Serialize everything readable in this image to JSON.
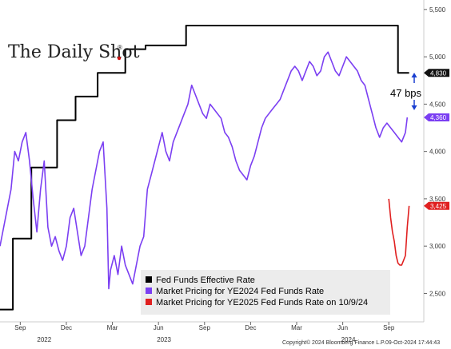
{
  "brand": {
    "logo_text": "The Daily Shot",
    "logo_mark": "®"
  },
  "chart_data": {
    "type": "line",
    "ylim": [
      2200,
      5600
    ],
    "y_ticks": [
      2500,
      3000,
      3500,
      4000,
      4500,
      5000,
      5500
    ],
    "y_tick_labels": [
      "2,500",
      "3,000",
      "3,500",
      "4,000",
      "4,500",
      "5,000",
      "5,500"
    ],
    "x_ticks": [
      {
        "x": 2022.67,
        "label": "Sep"
      },
      {
        "x": 2022.92,
        "label": "Dec"
      },
      {
        "x": 2023.17,
        "label": "Mar"
      },
      {
        "x": 2023.42,
        "label": "Jun"
      },
      {
        "x": 2023.67,
        "label": "Sep"
      },
      {
        "x": 2023.92,
        "label": "Dec"
      },
      {
        "x": 2024.17,
        "label": "Mar"
      },
      {
        "x": 2024.42,
        "label": "Jun"
      },
      {
        "x": 2024.67,
        "label": "Sep"
      }
    ],
    "year_labels": [
      {
        "x": 2022.8,
        "label": "2022"
      },
      {
        "x": 2023.45,
        "label": "2023"
      },
      {
        "x": 2024.45,
        "label": "2024"
      }
    ],
    "series": [
      {
        "name": "Fed Funds Effective Rate",
        "color": "#000000",
        "step": true,
        "x": [
          2022.56,
          2022.63,
          2022.73,
          2022.87,
          2022.97,
          2023.09,
          2023.24,
          2023.35,
          2023.57,
          2024.72,
          2024.78
        ],
        "y": [
          2330,
          3080,
          3830,
          4330,
          4580,
          4830,
          5080,
          5120,
          5330,
          4830,
          4830
        ]
      },
      {
        "name": "Market Pricing for YE2024 Fed Funds Rate",
        "color": "#7b3ff2",
        "step": false,
        "x": [
          2022.56,
          2022.58,
          2022.6,
          2022.62,
          2022.64,
          2022.66,
          2022.68,
          2022.7,
          2022.72,
          2022.74,
          2022.76,
          2022.78,
          2022.8,
          2022.82,
          2022.84,
          2022.86,
          2022.88,
          2022.9,
          2022.92,
          2022.94,
          2022.96,
          2022.98,
          2023.0,
          2023.02,
          2023.04,
          2023.06,
          2023.08,
          2023.1,
          2023.12,
          2023.14,
          2023.15,
          2023.16,
          2023.18,
          2023.2,
          2023.22,
          2023.24,
          2023.26,
          2023.28,
          2023.3,
          2023.32,
          2023.34,
          2023.36,
          2023.38,
          2023.4,
          2023.42,
          2023.44,
          2023.46,
          2023.48,
          2023.5,
          2023.52,
          2023.54,
          2023.56,
          2023.58,
          2023.6,
          2023.62,
          2023.64,
          2023.66,
          2023.68,
          2023.7,
          2023.72,
          2023.74,
          2023.76,
          2023.78,
          2023.8,
          2023.82,
          2023.84,
          2023.86,
          2023.88,
          2023.9,
          2023.92,
          2023.94,
          2023.96,
          2023.98,
          2024.0,
          2024.02,
          2024.04,
          2024.06,
          2024.08,
          2024.1,
          2024.12,
          2024.14,
          2024.16,
          2024.18,
          2024.2,
          2024.22,
          2024.24,
          2024.26,
          2024.28,
          2024.3,
          2024.32,
          2024.34,
          2024.36,
          2024.38,
          2024.4,
          2024.42,
          2024.44,
          2024.46,
          2024.48,
          2024.5,
          2024.52,
          2024.54,
          2024.56,
          2024.58,
          2024.6,
          2024.62,
          2024.64,
          2024.66,
          2024.68,
          2024.7,
          2024.72,
          2024.74,
          2024.76,
          2024.77
        ],
        "y": [
          3000,
          3200,
          3400,
          3600,
          4000,
          3900,
          4100,
          4200,
          3900,
          3500,
          3150,
          3600,
          3900,
          3200,
          3000,
          3100,
          2950,
          2850,
          3000,
          3300,
          3400,
          3150,
          2900,
          3000,
          3300,
          3600,
          3800,
          4000,
          4100,
          3400,
          2550,
          2750,
          2900,
          2700,
          3000,
          2800,
          2700,
          2600,
          2800,
          3000,
          3100,
          3600,
          3750,
          3900,
          4050,
          4200,
          4000,
          3900,
          4100,
          4200,
          4300,
          4400,
          4500,
          4700,
          4600,
          4500,
          4400,
          4350,
          4500,
          4450,
          4400,
          4350,
          4200,
          4150,
          4050,
          3900,
          3800,
          3750,
          3700,
          3850,
          3950,
          4100,
          4250,
          4350,
          4400,
          4450,
          4500,
          4550,
          4650,
          4750,
          4850,
          4900,
          4850,
          4750,
          4850,
          4950,
          4900,
          4800,
          4850,
          5000,
          5050,
          4950,
          4850,
          4800,
          4900,
          5000,
          4950,
          4900,
          4850,
          4750,
          4700,
          4550,
          4400,
          4250,
          4150,
          4250,
          4300,
          4250,
          4200,
          4150,
          4100,
          4200,
          4360
        ]
      },
      {
        "name": "Market Pricing for YE2025 Fed Funds Rate on 10/9/24",
        "color": "#e02020",
        "step": false,
        "x": [
          2024.67,
          2024.68,
          2024.69,
          2024.7,
          2024.71,
          2024.72,
          2024.73,
          2024.74,
          2024.75,
          2024.76,
          2024.77,
          2024.78
        ],
        "y": [
          3500,
          3300,
          3150,
          3050,
          2900,
          2820,
          2800,
          2800,
          2850,
          2900,
          3200,
          3425
        ]
      }
    ],
    "legend_position": "bottom-center",
    "annotations": [
      {
        "text": "47 bps"
      }
    ],
    "end_badges": [
      {
        "label": "4,830",
        "value": 4830,
        "color": "#111111"
      },
      {
        "label": "4,360",
        "value": 4360,
        "color": "#7b3ff2"
      },
      {
        "label": "3,425",
        "value": 3425,
        "color": "#e02020"
      }
    ],
    "grid": false
  },
  "footer": {
    "copyright": "Copyright© 2024 Bloomberg Finance L.P.",
    "timestamp": "09-Oct-2024 17:44:43"
  }
}
